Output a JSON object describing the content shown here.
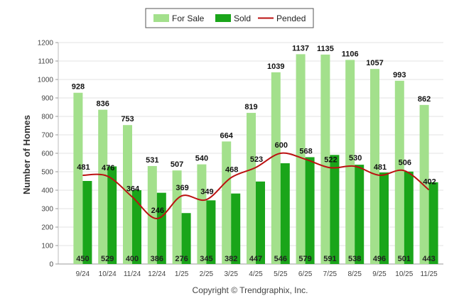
{
  "chart_data": {
    "type": "bar",
    "title": "",
    "xlabel": "",
    "ylabel": "Number of Homes",
    "ylim": [
      0,
      1200
    ],
    "yticks": [
      0,
      100,
      200,
      300,
      400,
      500,
      600,
      700,
      800,
      900,
      1000,
      1100,
      1200
    ],
    "grid": true,
    "legend_position": "top-center",
    "categories": [
      "9/24",
      "10/24",
      "11/24",
      "12/24",
      "1/25",
      "2/25",
      "3/25",
      "4/25",
      "5/25",
      "6/25",
      "7/25",
      "8/25",
      "9/25",
      "10/25",
      "11/25"
    ],
    "series": [
      {
        "name": "For Sale",
        "kind": "bar",
        "color": "#a3e08c",
        "values": [
          928,
          836,
          753,
          531,
          507,
          540,
          664,
          819,
          1039,
          1137,
          1135,
          1106,
          1057,
          993,
          862
        ]
      },
      {
        "name": "Sold",
        "kind": "bar",
        "color": "#1aa51a",
        "values": [
          450,
          529,
          400,
          386,
          276,
          345,
          382,
          447,
          546,
          579,
          591,
          538,
          496,
          501,
          443
        ]
      },
      {
        "name": "Pended",
        "kind": "line",
        "color": "#bb1111",
        "values": [
          481,
          476,
          364,
          246,
          369,
          349,
          468,
          523,
          600,
          568,
          522,
          530,
          481,
          506,
          402
        ]
      }
    ],
    "copyright": "Copyright © Trendgraphix, Inc."
  }
}
